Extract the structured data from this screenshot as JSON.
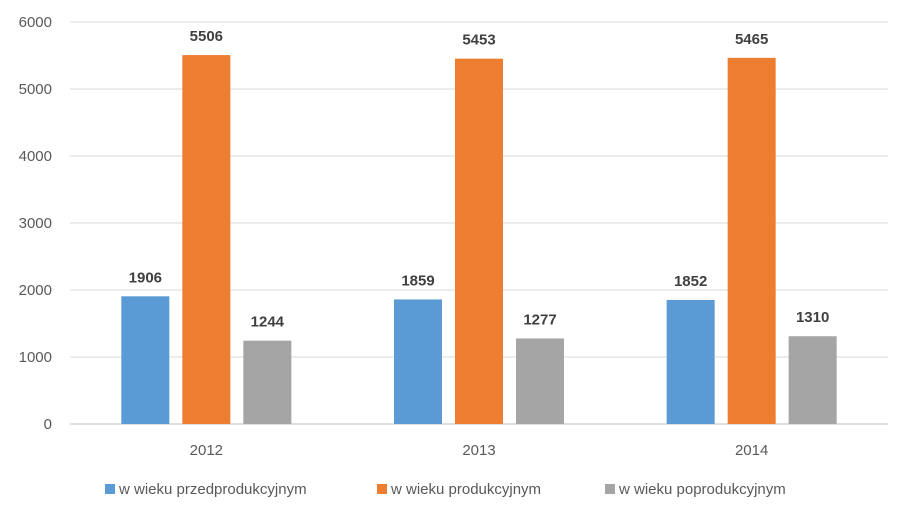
{
  "chart_data": {
    "type": "bar",
    "title": "",
    "xlabel": "",
    "ylabel": "",
    "categories": [
      "2012",
      "2013",
      "2014"
    ],
    "series": [
      {
        "name": "w wieku przedprodukcyjnym",
        "values": [
          1906,
          1859,
          1852
        ],
        "color": "#5B9BD5"
      },
      {
        "name": "w wieku produkcyjnym",
        "values": [
          5506,
          5453,
          5465
        ],
        "color": "#ED7D31"
      },
      {
        "name": "w wieku poprodukcyjnym",
        "values": [
          1244,
          1277,
          1310
        ],
        "color": "#A5A5A5"
      }
    ],
    "ylim": [
      0,
      6000
    ],
    "yticks": [
      "0",
      "1000",
      "2000",
      "3000",
      "4000",
      "5000",
      "6000"
    ],
    "grid": true,
    "legend_position": "bottom",
    "data_labels": true
  }
}
